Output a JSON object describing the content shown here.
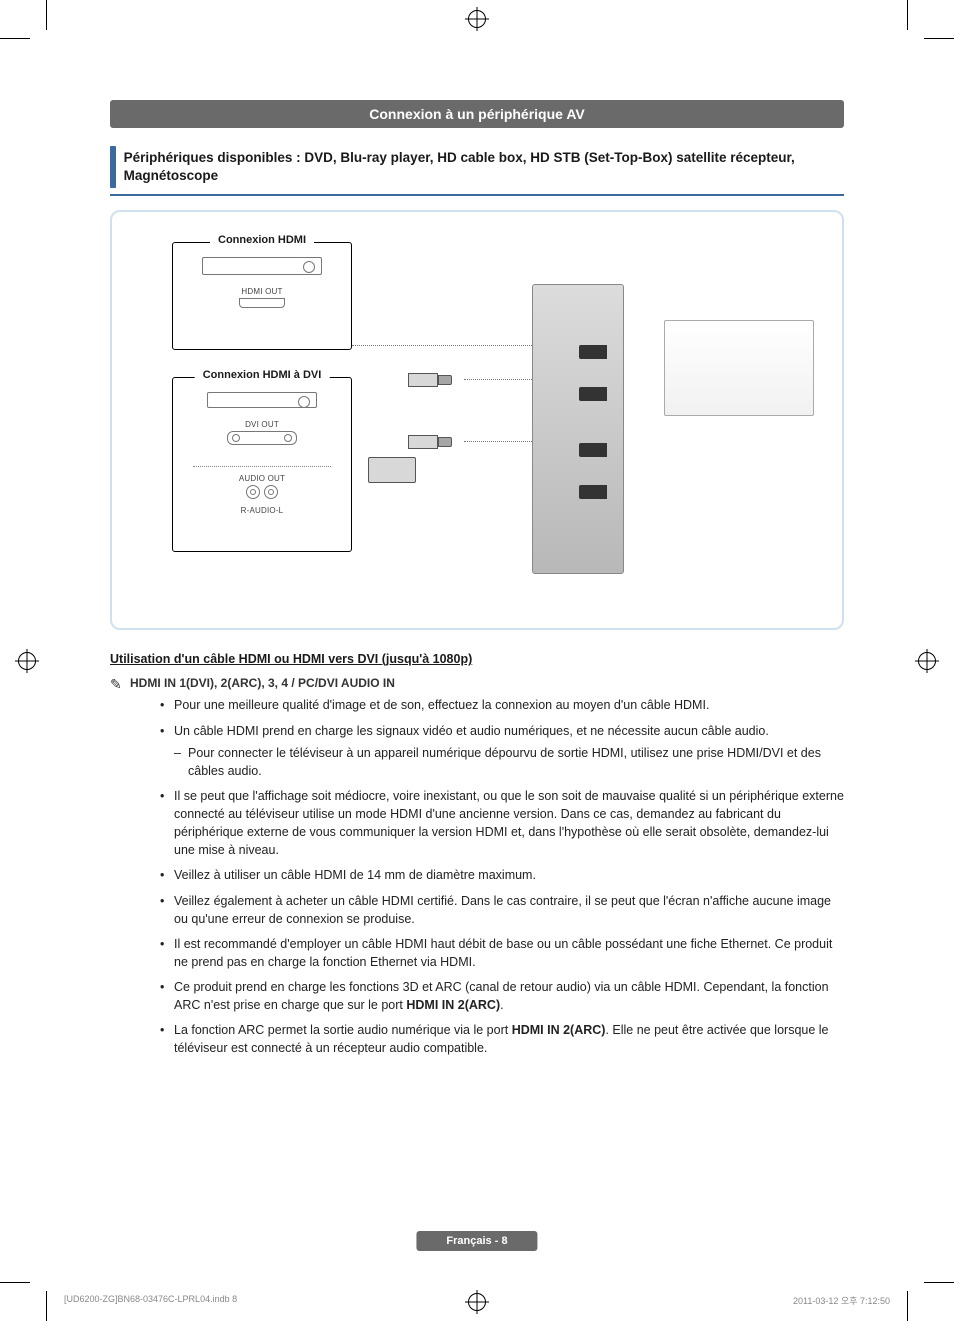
{
  "colors": {
    "header_bg": "#6a6a6a",
    "header_fg": "#ffffff",
    "accent_blue": "#3b6aa0",
    "diagram_border": "#cfe0ef",
    "body_text": "#1a1a1a",
    "footer_text": "#888888"
  },
  "typography": {
    "body_font": "Arial",
    "body_size_pt": 9,
    "header_size_pt": 11,
    "subheader_size_pt": 10
  },
  "header": {
    "title": "Connexion à un périphérique AV"
  },
  "subheader": {
    "text": "Périphériques disponibles : DVD, Blu-ray player, HD cable box, HD STB (Set-Top-Box) satellite récepteur, Magnétoscope"
  },
  "diagram": {
    "hdmi_group_label": "Connexion HDMI",
    "dvi_group_label": "Connexion HDMI à DVI",
    "hdmi_out_label": "HDMI OUT",
    "dvi_out_label": "DVI OUT",
    "audio_out_label": "AUDIO OUT",
    "audio_lr_label": "R-AUDIO-L"
  },
  "usage": {
    "subtitle": "Utilisation d'un câble HDMI ou HDMI vers DVI (jusqu'à 1080p)",
    "note_prefix": "✎",
    "note_heading": "HDMI IN 1(DVI), 2(ARC), 3, 4 / PC/DVI AUDIO IN",
    "bullets": [
      {
        "text": "Pour une meilleure qualité d'image et de son, effectuez la connexion au moyen d'un câble HDMI."
      },
      {
        "text": "Un câble HDMI prend en charge les signaux vidéo et audio numériques, et ne nécessite aucun câble audio.",
        "sub": [
          "Pour connecter le téléviseur à un appareil numérique dépourvu de sortie HDMI, utilisez une prise HDMI/DVI et des câbles audio."
        ]
      },
      {
        "text": "Il se peut que l'affichage soit médiocre, voire inexistant, ou que le son soit de mauvaise qualité si un périphérique externe connecté au téléviseur utilise un mode HDMI d'une ancienne version. Dans ce cas, demandez au fabricant du périphérique externe de vous communiquer la version HDMI et, dans l'hypothèse où elle serait obsolète, demandez-lui une mise à niveau."
      },
      {
        "text": "Veillez à utiliser un câble HDMI de 14 mm de diamètre maximum."
      },
      {
        "text": "Veillez également à acheter un câble HDMI certifié. Dans le cas contraire, il se peut que l'écran n'affiche aucune image ou qu'une erreur de connexion se produise."
      },
      {
        "text": "Il est recommandé d'employer un câble HDMI haut débit de base ou un câble possédant une fiche Ethernet. Ce produit ne prend pas en charge la fonction Ethernet via HDMI."
      },
      {
        "text_html": "Ce produit prend en charge les fonctions 3D et ARC (canal de retour audio) via un câble HDMI. Cependant, la fonction ARC n'est prise en charge que sur le port <b>HDMI IN 2(ARC)</b>."
      },
      {
        "text_html": "La fonction ARC permet la sortie audio numérique via le port <b>HDMI IN 2(ARC)</b>. Elle ne peut être activée que lorsque le téléviseur est connecté à un récepteur audio compatible."
      }
    ]
  },
  "footer": {
    "page_label": "Français - 8",
    "print_left": "[UD6200-ZG]BN68-03476C-LPRL04.indb   8",
    "print_right": "2011-03-12   오후 7:12:50"
  }
}
